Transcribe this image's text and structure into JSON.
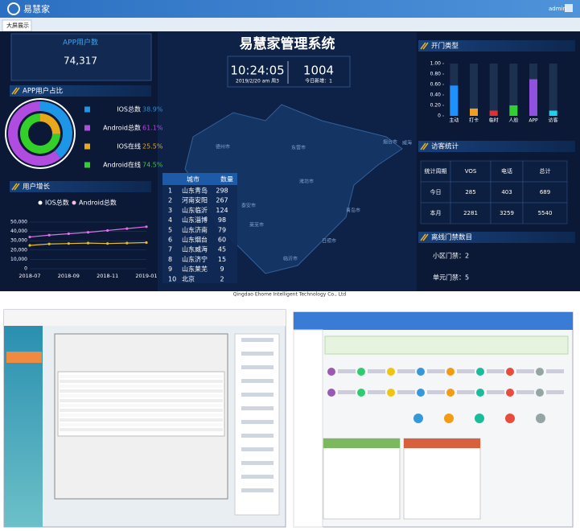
{
  "header": {
    "brand": "易慧家",
    "user": "admin",
    "tab": "大屏展示"
  },
  "app_users": {
    "title": "APP用户数",
    "value": "74,317"
  },
  "center": {
    "title": "易慧家管理系统",
    "time": "10:24:05",
    "date": "2019/2/20  am  周3",
    "count": "1004",
    "count_label": "今日新增：1",
    "map_labels": [
      "德州市",
      "东营市",
      "烟台市",
      "威海",
      "潍坊市",
      "青岛市",
      "泰安市",
      "临沂市",
      "日照市",
      "莱芜市"
    ]
  },
  "city_table": {
    "headers": [
      "城市",
      "数量"
    ],
    "rows": [
      [
        "1",
        "山东青岛",
        "298"
      ],
      [
        "2",
        "河南安阳",
        "267"
      ],
      [
        "3",
        "山东临沂",
        "124"
      ],
      [
        "4",
        "山东淄博",
        "98"
      ],
      [
        "5",
        "山东济南",
        "79"
      ],
      [
        "6",
        "山东烟台",
        "60"
      ],
      [
        "7",
        "山东威海",
        "45"
      ],
      [
        "8",
        "山东济宁",
        "15"
      ],
      [
        "9",
        "山东莱芜",
        "9"
      ],
      [
        "10",
        "北京",
        "2"
      ]
    ]
  },
  "visitor_table": {
    "title": "访客统计",
    "headers": [
      "统计周期",
      "VOS",
      "电话",
      "总计"
    ],
    "rows": [
      [
        "今日",
        "285",
        "403",
        "689"
      ],
      [
        "本月",
        "2281",
        "3259",
        "5540"
      ]
    ]
  },
  "offline": {
    "title": "离线门禁数目",
    "items": [
      "小区门禁：2",
      "单元门禁：5"
    ]
  },
  "footer": "Qingdao Ehome Intelligent Technology Co., Ltd",
  "chart_data": [
    {
      "type": "pie",
      "title": "APP用户占比",
      "categories": [
        "IOS总数",
        "Android总数",
        "IOS在线",
        "Android在线"
      ],
      "values": [
        38.9,
        61.1,
        25.5,
        74.5
      ],
      "value_labels": [
        "38.9%",
        "61.1%",
        "25.5%",
        "74.5%"
      ],
      "colors": [
        "#1e96e8",
        "#b04ce0",
        "#e8a81c",
        "#34d02a"
      ]
    },
    {
      "type": "line",
      "title": "用户增长",
      "categories": [
        "2018-07",
        null,
        "2018-09",
        null,
        "2018-11",
        null,
        "2019-01"
      ],
      "series": [
        {
          "name": "IOS总数",
          "color": "#e8c020",
          "values": [
            25000,
            26500,
            27000,
            27500,
            27000,
            27500,
            28000
          ]
        },
        {
          "name": "Android总数",
          "color": "#e070e8",
          "values": [
            34000,
            36000,
            37500,
            39000,
            41000,
            43000,
            45000
          ]
        }
      ],
      "ylim": [
        0,
        50000
      ],
      "yticks": [
        0,
        {
          "value": 10000,
          "label": "10,000"
        },
        {
          "value": 20000,
          "label": "20,000"
        },
        {
          "value": 30000,
          "label": "30,000"
        },
        {
          "value": 40000,
          "label": "40,000"
        },
        {
          "value": 50000,
          "label": "50,000"
        }
      ]
    },
    {
      "type": "bar",
      "title": "开门类型",
      "categories": [
        "主动",
        "打卡",
        "临时",
        "人脸",
        "APP",
        "访客"
      ],
      "values": [
        0.58,
        0.14,
        0.1,
        0.2,
        0.7,
        0.1
      ],
      "colors": [
        "#1e90ff",
        "#f0a020",
        "#e03030",
        "#30d030",
        "#9050e0",
        "#20d0f0"
      ],
      "ylim": [
        0,
        1
      ],
      "yticks": [
        0,
        {
          "value": 0.2,
          "label": "0.20"
        },
        {
          "value": 0.4,
          "label": "0.40"
        },
        {
          "value": 0.6,
          "label": "0.60"
        },
        {
          "value": 0.8,
          "label": "0.80"
        },
        {
          "value": 1,
          "label": "1.00"
        }
      ]
    }
  ]
}
